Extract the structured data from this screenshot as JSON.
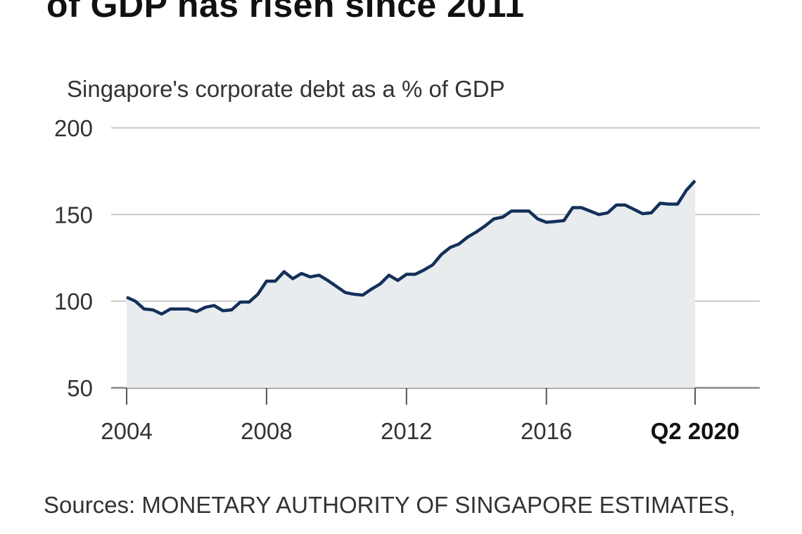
{
  "title": "of GDP has risen since 2011",
  "source": "Sources: MONETARY AUTHORITY OF SINGAPORE ESTIMATES,",
  "colors": {
    "line": "#14305a",
    "fill": "#e8ecef",
    "grid": "#bbbbbb",
    "axis": "#888888"
  },
  "chart_data": {
    "type": "area",
    "title": "Singapore's corporate debt as a % of GDP",
    "xlabel": "",
    "ylabel": "",
    "ylim": [
      50,
      200
    ],
    "xlim": [
      2004,
      2020.25
    ],
    "yticks": [
      50,
      100,
      150,
      200
    ],
    "xticks": [
      {
        "value": 2004,
        "label": "2004",
        "bold": false
      },
      {
        "value": 2008,
        "label": "2008",
        "bold": false
      },
      {
        "value": 2012,
        "label": "2012",
        "bold": false
      },
      {
        "value": 2016,
        "label": "2016",
        "bold": false
      },
      {
        "value": 2020.25,
        "label": "Q2 2020",
        "bold": true
      }
    ],
    "grid": true,
    "x_start": 2004,
    "x_step": 0.25,
    "values": [
      102.3,
      100,
      95.5,
      95,
      92.6,
      95.5,
      95.5,
      95.5,
      94,
      96.5,
      97.5,
      94.5,
      95,
      99.5,
      99.5,
      104,
      111.6,
      111.6,
      117,
      113,
      116,
      114,
      115,
      112,
      108.5,
      105,
      104,
      103.5,
      107,
      110,
      115,
      112,
      115.5,
      115.5,
      118,
      121,
      127,
      131,
      133,
      137,
      140,
      143.5,
      147.5,
      148.5,
      152,
      152,
      152,
      147.5,
      145.5,
      146,
      146.5,
      154,
      154,
      152,
      150,
      151,
      155.5,
      155.5,
      153,
      150.5,
      151,
      156.5,
      156,
      156,
      164,
      169.5
    ]
  }
}
